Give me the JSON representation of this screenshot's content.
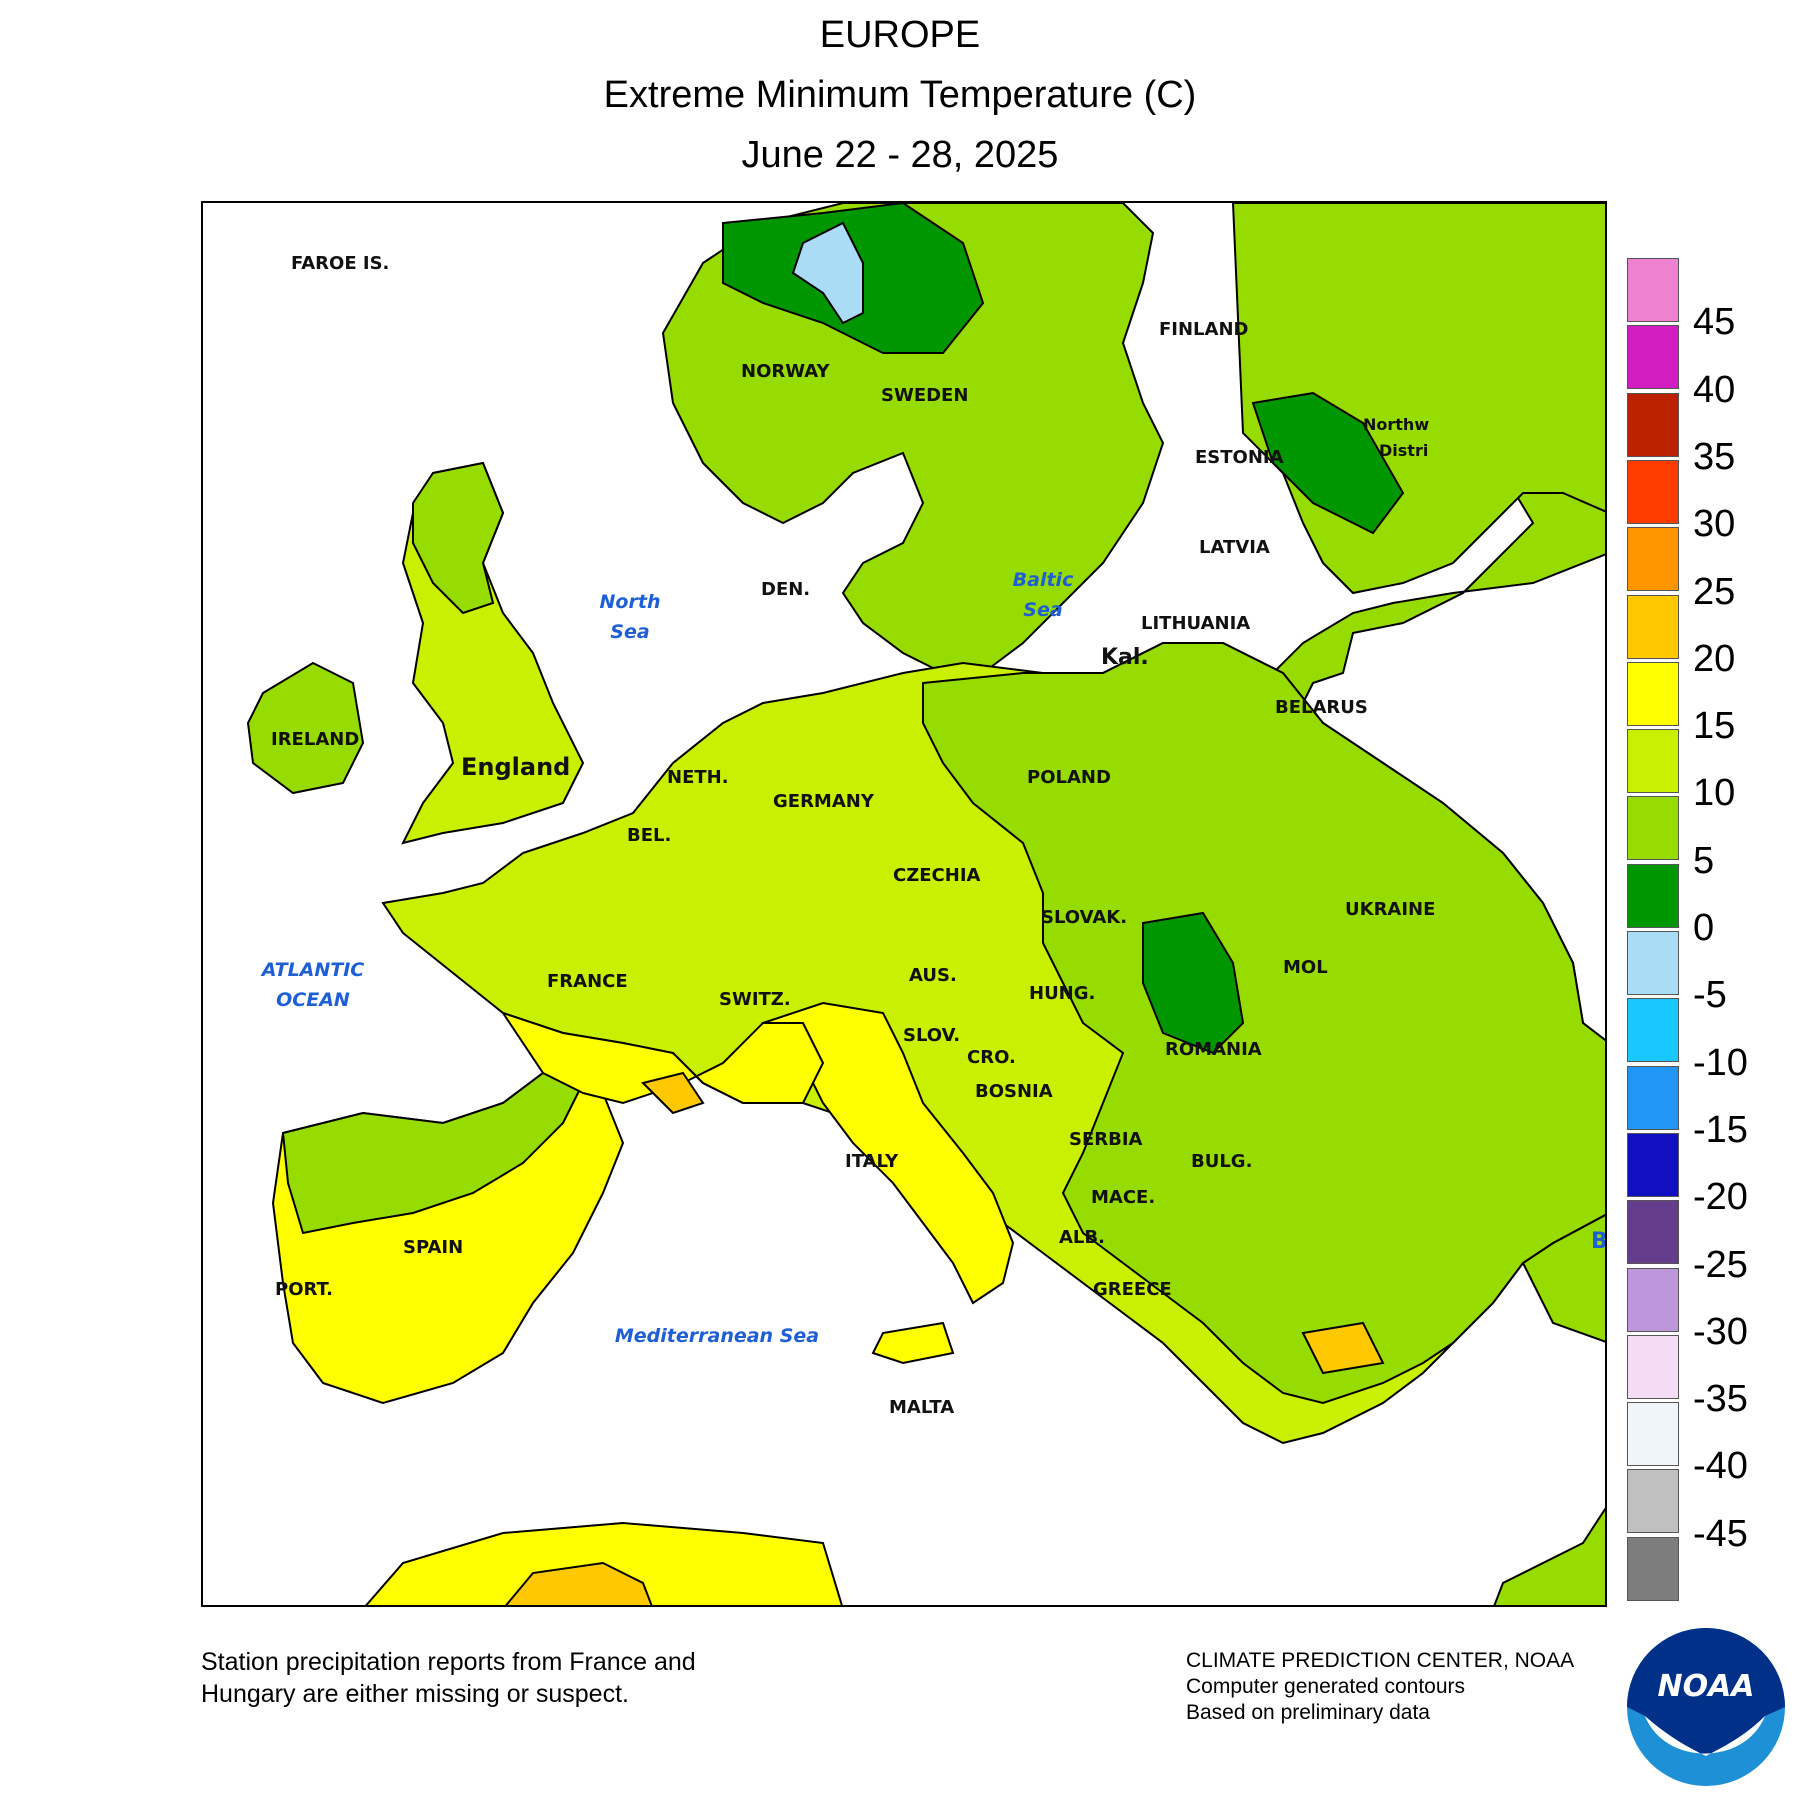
{
  "title": {
    "line1": "EUROPE",
    "line2": "Extreme Minimum Temperature (C)",
    "line3": "June 22 - 28, 2025"
  },
  "legend": {
    "bins": [
      {
        "label": "45",
        "color": "#ee82d0"
      },
      {
        "label": "40",
        "color": "#d21ec0"
      },
      {
        "label": "35",
        "color": "#bb2200"
      },
      {
        "label": "30",
        "color": "#ff3c00"
      },
      {
        "label": "25",
        "color": "#ff9600"
      },
      {
        "label": "20",
        "color": "#ffc800"
      },
      {
        "label": "15",
        "color": "#ffff00"
      },
      {
        "label": "10",
        "color": "#c8f000"
      },
      {
        "label": "5",
        "color": "#96dc00"
      },
      {
        "label": "0",
        "color": "#009600"
      },
      {
        "label": "-5",
        "color": "#aadcf5"
      },
      {
        "label": "-10",
        "color": "#18c8ff"
      },
      {
        "label": "-15",
        "color": "#2196f5"
      },
      {
        "label": "-20",
        "color": "#1010c0"
      },
      {
        "label": "-25",
        "color": "#643c8c"
      },
      {
        "label": "-30",
        "color": "#be96dc"
      },
      {
        "label": "-35",
        "color": "#f5dcf5"
      },
      {
        "label": "-40",
        "color": "#f0f5fa"
      },
      {
        "label": "-45",
        "color": "#c0c0c0"
      },
      {
        "label": "",
        "color": "#7d7d7d"
      }
    ]
  },
  "map_labels": {
    "faroe": "FAROE IS.",
    "norway": "NORWAY",
    "sweden": "SWEDEN",
    "finland": "FINLAND",
    "estonia": "ESTONIA",
    "northwest_line1": "Northw",
    "northwest_line2": "Distri",
    "latvia": "LATVIA",
    "lithuania": "LITHUANIA",
    "kal": "Kal.",
    "belarus": "BELARUS",
    "ireland": "IRELAND",
    "england": "England",
    "den": "DEN.",
    "neth": "NETH.",
    "germany": "GERMANY",
    "poland": "POLAND",
    "bel": "BEL.",
    "czechia": "CZECHIA",
    "slovak": "SLOVAK.",
    "ukraine": "UKRAINE",
    "france": "FRANCE",
    "switz": "SWITZ.",
    "aus": "AUS.",
    "hung": "HUNG.",
    "mol": "MOL",
    "slov": "SLOV.",
    "cro": "CRO.",
    "romania": "ROMANIA",
    "bosnia": "BOSNIA",
    "serbia": "SERBIA",
    "italy": "ITALY",
    "bulg": "BULG.",
    "mace": "MACE.",
    "alb": "ALB.",
    "spain": "SPAIN",
    "port": "PORT.",
    "greece": "GREECE",
    "malta": "MALTA",
    "b_edge": "B"
  },
  "seas": {
    "north_sea_1": "North",
    "north_sea_2": "Sea",
    "baltic_1": "Baltic",
    "baltic_2": "Sea",
    "atlantic_1": "ATLANTIC",
    "atlantic_2": "OCEAN",
    "med": "Mediterranean Sea"
  },
  "notes": {
    "left_1": "Station precipitation reports from France and",
    "left_2": "Hungary are either missing or suspect.",
    "right_1": "CLIMATE PREDICTION CENTER, NOAA",
    "right_2": "Computer generated contours",
    "right_3": "Based on preliminary data",
    "logo": "NOAA"
  },
  "colors": {
    "bin_0_5": "#009600",
    "bin_5_10": "#96dc00",
    "bin_10_15": "#c8f000",
    "bin_15_20": "#ffff00",
    "bin_20_25": "#ffc800",
    "bin_neg5_0": "#aadcf5",
    "sea": "#ffffff",
    "sea_label": "#1f5fd6"
  }
}
